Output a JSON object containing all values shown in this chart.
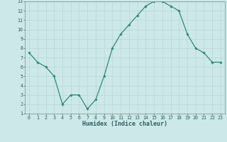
{
  "x": [
    0,
    1,
    2,
    3,
    4,
    5,
    6,
    7,
    8,
    9,
    10,
    11,
    12,
    13,
    14,
    15,
    16,
    17,
    18,
    19,
    20,
    21,
    22,
    23
  ],
  "y": [
    7.5,
    6.5,
    6.0,
    5.0,
    2.0,
    3.0,
    3.0,
    1.5,
    2.5,
    5.0,
    8.0,
    9.5,
    10.5,
    11.5,
    12.5,
    13.0,
    13.0,
    12.5,
    12.0,
    9.5,
    8.0,
    7.5,
    6.5,
    6.5
  ],
  "line_color": "#2e8b74",
  "marker": "D",
  "marker_size": 1.8,
  "bg_color": "#cce8e8",
  "grid_color": "#b8d8d8",
  "xlabel": "Humidex (Indice chaleur)",
  "xlim": [
    -0.5,
    23.5
  ],
  "ylim": [
    1,
    13
  ],
  "xticks": [
    0,
    1,
    2,
    3,
    4,
    5,
    6,
    7,
    8,
    9,
    10,
    11,
    12,
    13,
    14,
    15,
    16,
    17,
    18,
    19,
    20,
    21,
    22,
    23
  ],
  "yticks": [
    1,
    2,
    3,
    4,
    5,
    6,
    7,
    8,
    9,
    10,
    11,
    12,
    13
  ],
  "tick_fontsize": 4.8,
  "xlabel_fontsize": 6.0,
  "axis_color": "#2e6060",
  "spine_color": "#888888",
  "linewidth": 0.9
}
